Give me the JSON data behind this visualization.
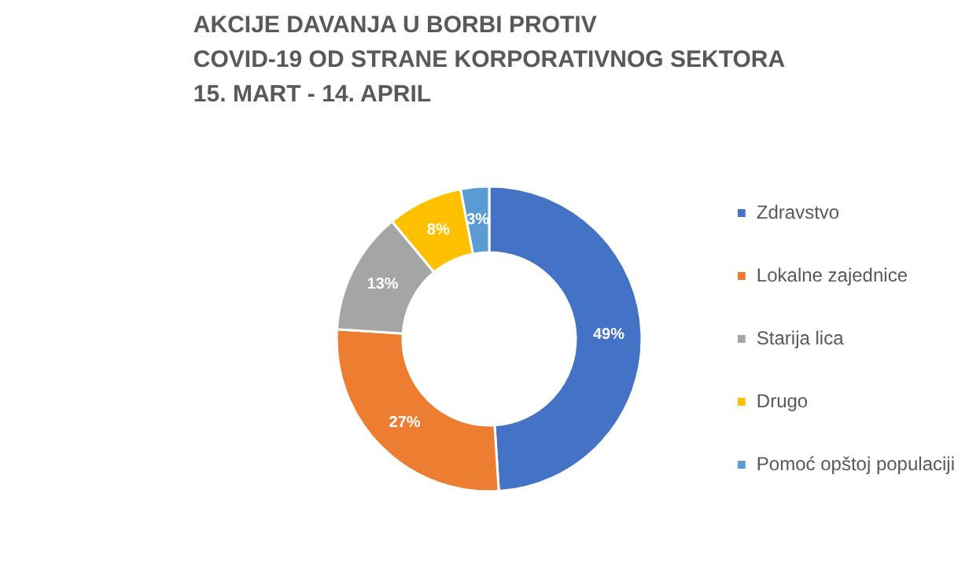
{
  "chart_data": {
    "type": "donut",
    "title": "AKCIJE DAVANJA U BORBI PROTIV\nCOVID-19 OD STRANE KORPORATIVNOG SEKTORA\n15. MART - 14. APRIL",
    "categories": [
      "Zdravstvo",
      "Lokalne zajednice",
      "Starija lica",
      "Drugo",
      "Pomoć opštoj populaciji"
    ],
    "values": [
      49,
      27,
      13,
      8,
      3
    ],
    "colors": [
      "#4472c4",
      "#ed7d31",
      "#a5a5a5",
      "#ffc000",
      "#5b9bd5"
    ],
    "value_labels": [
      "49%",
      "27%",
      "13%",
      "8%",
      "3%"
    ],
    "legend": "right"
  }
}
